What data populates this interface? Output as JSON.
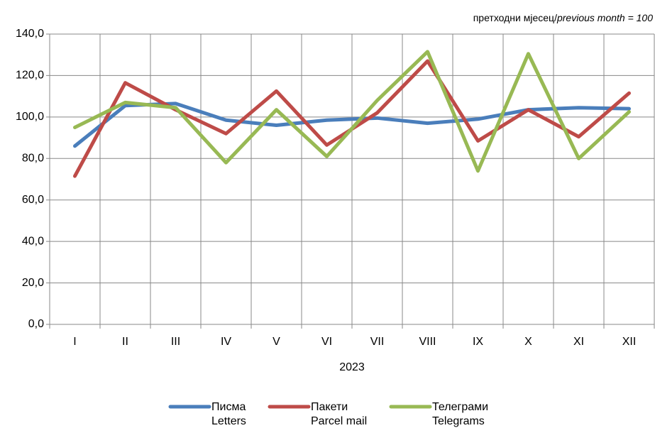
{
  "chart_data": {
    "type": "line",
    "note": "претходни мјесец/",
    "note_italic": "previous month = 100",
    "x_label": "2023",
    "categories": [
      "I",
      "II",
      "III",
      "IV",
      "V",
      "VI",
      "VII",
      "VIII",
      "IX",
      "X",
      "XI",
      "XII"
    ],
    "series": [
      {
        "name": "Писма",
        "name_en": "Letters",
        "color": "#4a7ebb",
        "values": [
          86,
          105.5,
          106.5,
          98.5,
          96,
          98.5,
          99.5,
          97,
          99,
          103.5,
          104.5,
          104
        ]
      },
      {
        "name": "Пакети",
        "name_en": "Parcel mail",
        "color": "#be4b48",
        "values": [
          71.5,
          116.5,
          103.5,
          92,
          112.5,
          86.5,
          102,
          127,
          88.5,
          103.5,
          90.5,
          111.5
        ]
      },
      {
        "name": "Телеграми",
        "name_en": "Telegrams",
        "color": "#98b954",
        "values": [
          95,
          107,
          104.5,
          78,
          103.5,
          81,
          108,
          131.5,
          74,
          130.5,
          80,
          102.5
        ]
      }
    ],
    "ylim": [
      0,
      140
    ],
    "yticks": [
      {
        "value": 0,
        "label": "0,0"
      },
      {
        "value": 20,
        "label": "20,0"
      },
      {
        "value": 40,
        "label": "40,0"
      },
      {
        "value": 60,
        "label": "60,0"
      },
      {
        "value": 80,
        "label": "80,0"
      },
      {
        "value": 100,
        "label": "100,0"
      },
      {
        "value": 120,
        "label": "120,0"
      },
      {
        "value": 140,
        "label": "140,0"
      }
    ],
    "grid": true
  }
}
